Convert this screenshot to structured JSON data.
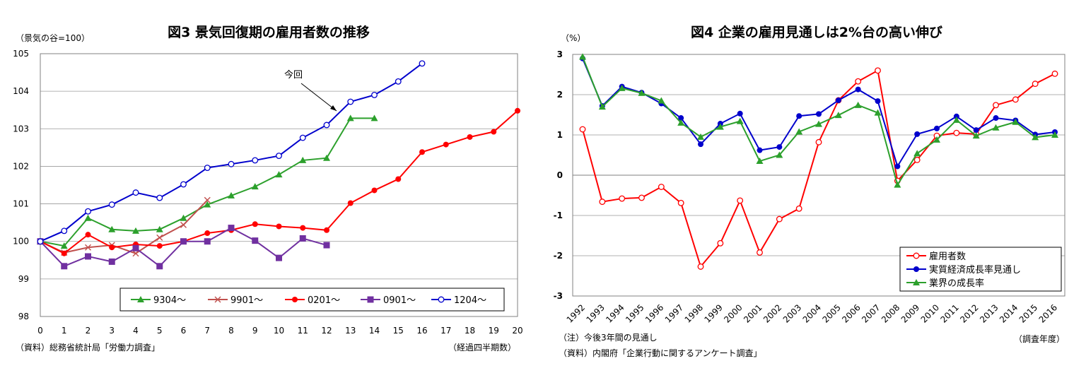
{
  "chart_data": [
    {
      "type": "line",
      "title": "図3 景気回復期の雇用者数の推移",
      "unit_label": "（景気の谷=100）",
      "xlabel": "（経過四半期数）",
      "source": "（資料）総務省統計局「労働力調査」",
      "annotation": "今回",
      "xlim": [
        0,
        20
      ],
      "ylim": [
        98,
        105
      ],
      "x_ticks": [
        0,
        1,
        2,
        3,
        4,
        5,
        6,
        7,
        8,
        9,
        10,
        11,
        12,
        13,
        14,
        15,
        16,
        17,
        18,
        19,
        20
      ],
      "y_ticks": [
        98,
        99,
        100,
        101,
        102,
        103,
        104,
        105
      ],
      "grid": "horizontal",
      "legend_position": "bottom",
      "series": [
        {
          "name": "9304〜",
          "color": "#2ca02c",
          "marker": "triangle",
          "x": [
            0,
            1,
            2,
            3,
            4,
            5,
            6,
            7,
            8,
            9,
            10,
            11,
            12,
            13,
            14
          ],
          "values": [
            100,
            99.88,
            100.62,
            100.32,
            100.28,
            100.32,
            100.62,
            100.98,
            101.22,
            101.46,
            101.78,
            102.16,
            102.22,
            103.28,
            103.28
          ]
        },
        {
          "name": "9901〜",
          "color": "#c0504d",
          "marker": "x",
          "x": [
            0,
            1,
            2,
            3,
            4,
            5,
            6,
            7
          ],
          "values": [
            100,
            99.7,
            99.84,
            99.9,
            99.68,
            100.1,
            100.44,
            101.1
          ]
        },
        {
          "name": "0201〜",
          "color": "#ff0000",
          "marker": "circle-filled",
          "x": [
            0,
            1,
            2,
            3,
            4,
            5,
            6,
            7,
            8,
            9,
            10,
            11,
            12,
            13,
            14,
            15,
            16,
            17,
            18,
            19,
            20
          ],
          "values": [
            100,
            99.68,
            100.18,
            99.84,
            99.92,
            99.88,
            100,
            100.22,
            100.3,
            100.46,
            100.4,
            100.36,
            100.3,
            101.02,
            101.36,
            101.66,
            102.38,
            102.58,
            102.78,
            102.92,
            103.48
          ]
        },
        {
          "name": "0901〜",
          "color": "#7030a0",
          "marker": "square",
          "x": [
            0,
            1,
            2,
            3,
            4,
            5,
            6,
            7,
            8,
            9,
            10,
            11,
            12
          ],
          "values": [
            100,
            99.34,
            99.6,
            99.46,
            99.82,
            99.34,
            100,
            100,
            100.36,
            100.02,
            99.56,
            100.08,
            99.9
          ]
        },
        {
          "name": "1204〜",
          "color": "#0000cc",
          "marker": "circle-open",
          "x": [
            0,
            1,
            2,
            3,
            4,
            5,
            6,
            7,
            8,
            9,
            10,
            11,
            12,
            13,
            14,
            15,
            16
          ],
          "values": [
            100,
            100.28,
            100.8,
            100.98,
            101.3,
            101.16,
            101.52,
            101.96,
            102.06,
            102.16,
            102.28,
            102.76,
            103.1,
            103.72,
            103.9,
            104.26,
            104.74
          ]
        }
      ]
    },
    {
      "type": "line",
      "title": "図4 企業の雇用見通しは2%台の高い伸び",
      "unit_label": "（%）",
      "xlabel": "（調査年度）",
      "note": "（注）今後3年間の見通し",
      "source": "（資料）内閣府「企業行動に関するアンケート調査」",
      "ylim": [
        -3,
        3
      ],
      "y_ticks": [
        -3,
        -2,
        -1,
        0,
        1,
        2,
        3
      ],
      "categories": [
        "1992",
        "1993",
        "1994",
        "1995",
        "1996",
        "1997",
        "1998",
        "1999",
        "2000",
        "2001",
        "2002",
        "2003",
        "2004",
        "2005",
        "2006",
        "2007",
        "2008",
        "2009",
        "2010",
        "2011",
        "2012",
        "2013",
        "2014",
        "2015",
        "2016"
      ],
      "grid": "horizontal",
      "legend_position": "bottom-right",
      "series": [
        {
          "name": "雇用者数",
          "color": "#ff0000",
          "marker": "circle-open",
          "values": [
            1.14,
            -0.66,
            -0.58,
            -0.56,
            -0.29,
            -0.69,
            -2.27,
            -1.69,
            -0.63,
            -1.92,
            -1.09,
            -0.83,
            0.82,
            1.86,
            2.33,
            2.6,
            -0.14,
            0.38,
            0.98,
            1.05,
            1.02,
            1.74,
            1.88,
            2.27,
            2.52
          ]
        },
        {
          "name": "実質経済成長率見通し",
          "color": "#0000cc",
          "marker": "circle-filled",
          "values": [
            2.9,
            1.72,
            2.2,
            2.05,
            1.78,
            1.42,
            0.77,
            1.28,
            1.53,
            0.62,
            0.7,
            1.47,
            1.52,
            1.86,
            2.13,
            1.84,
            0.22,
            1.02,
            1.16,
            1.46,
            1.12,
            1.42,
            1.36,
            1.01,
            1.07
          ]
        },
        {
          "name": "業界の成長率",
          "color": "#2ca02c",
          "marker": "triangle",
          "values": [
            2.94,
            1.7,
            2.16,
            2.04,
            1.85,
            1.3,
            0.95,
            1.2,
            1.34,
            0.35,
            0.5,
            1.08,
            1.27,
            1.49,
            1.74,
            1.55,
            -0.24,
            0.54,
            0.88,
            1.37,
            0.98,
            1.18,
            1.32,
            0.94,
            1.0
          ]
        }
      ]
    }
  ]
}
